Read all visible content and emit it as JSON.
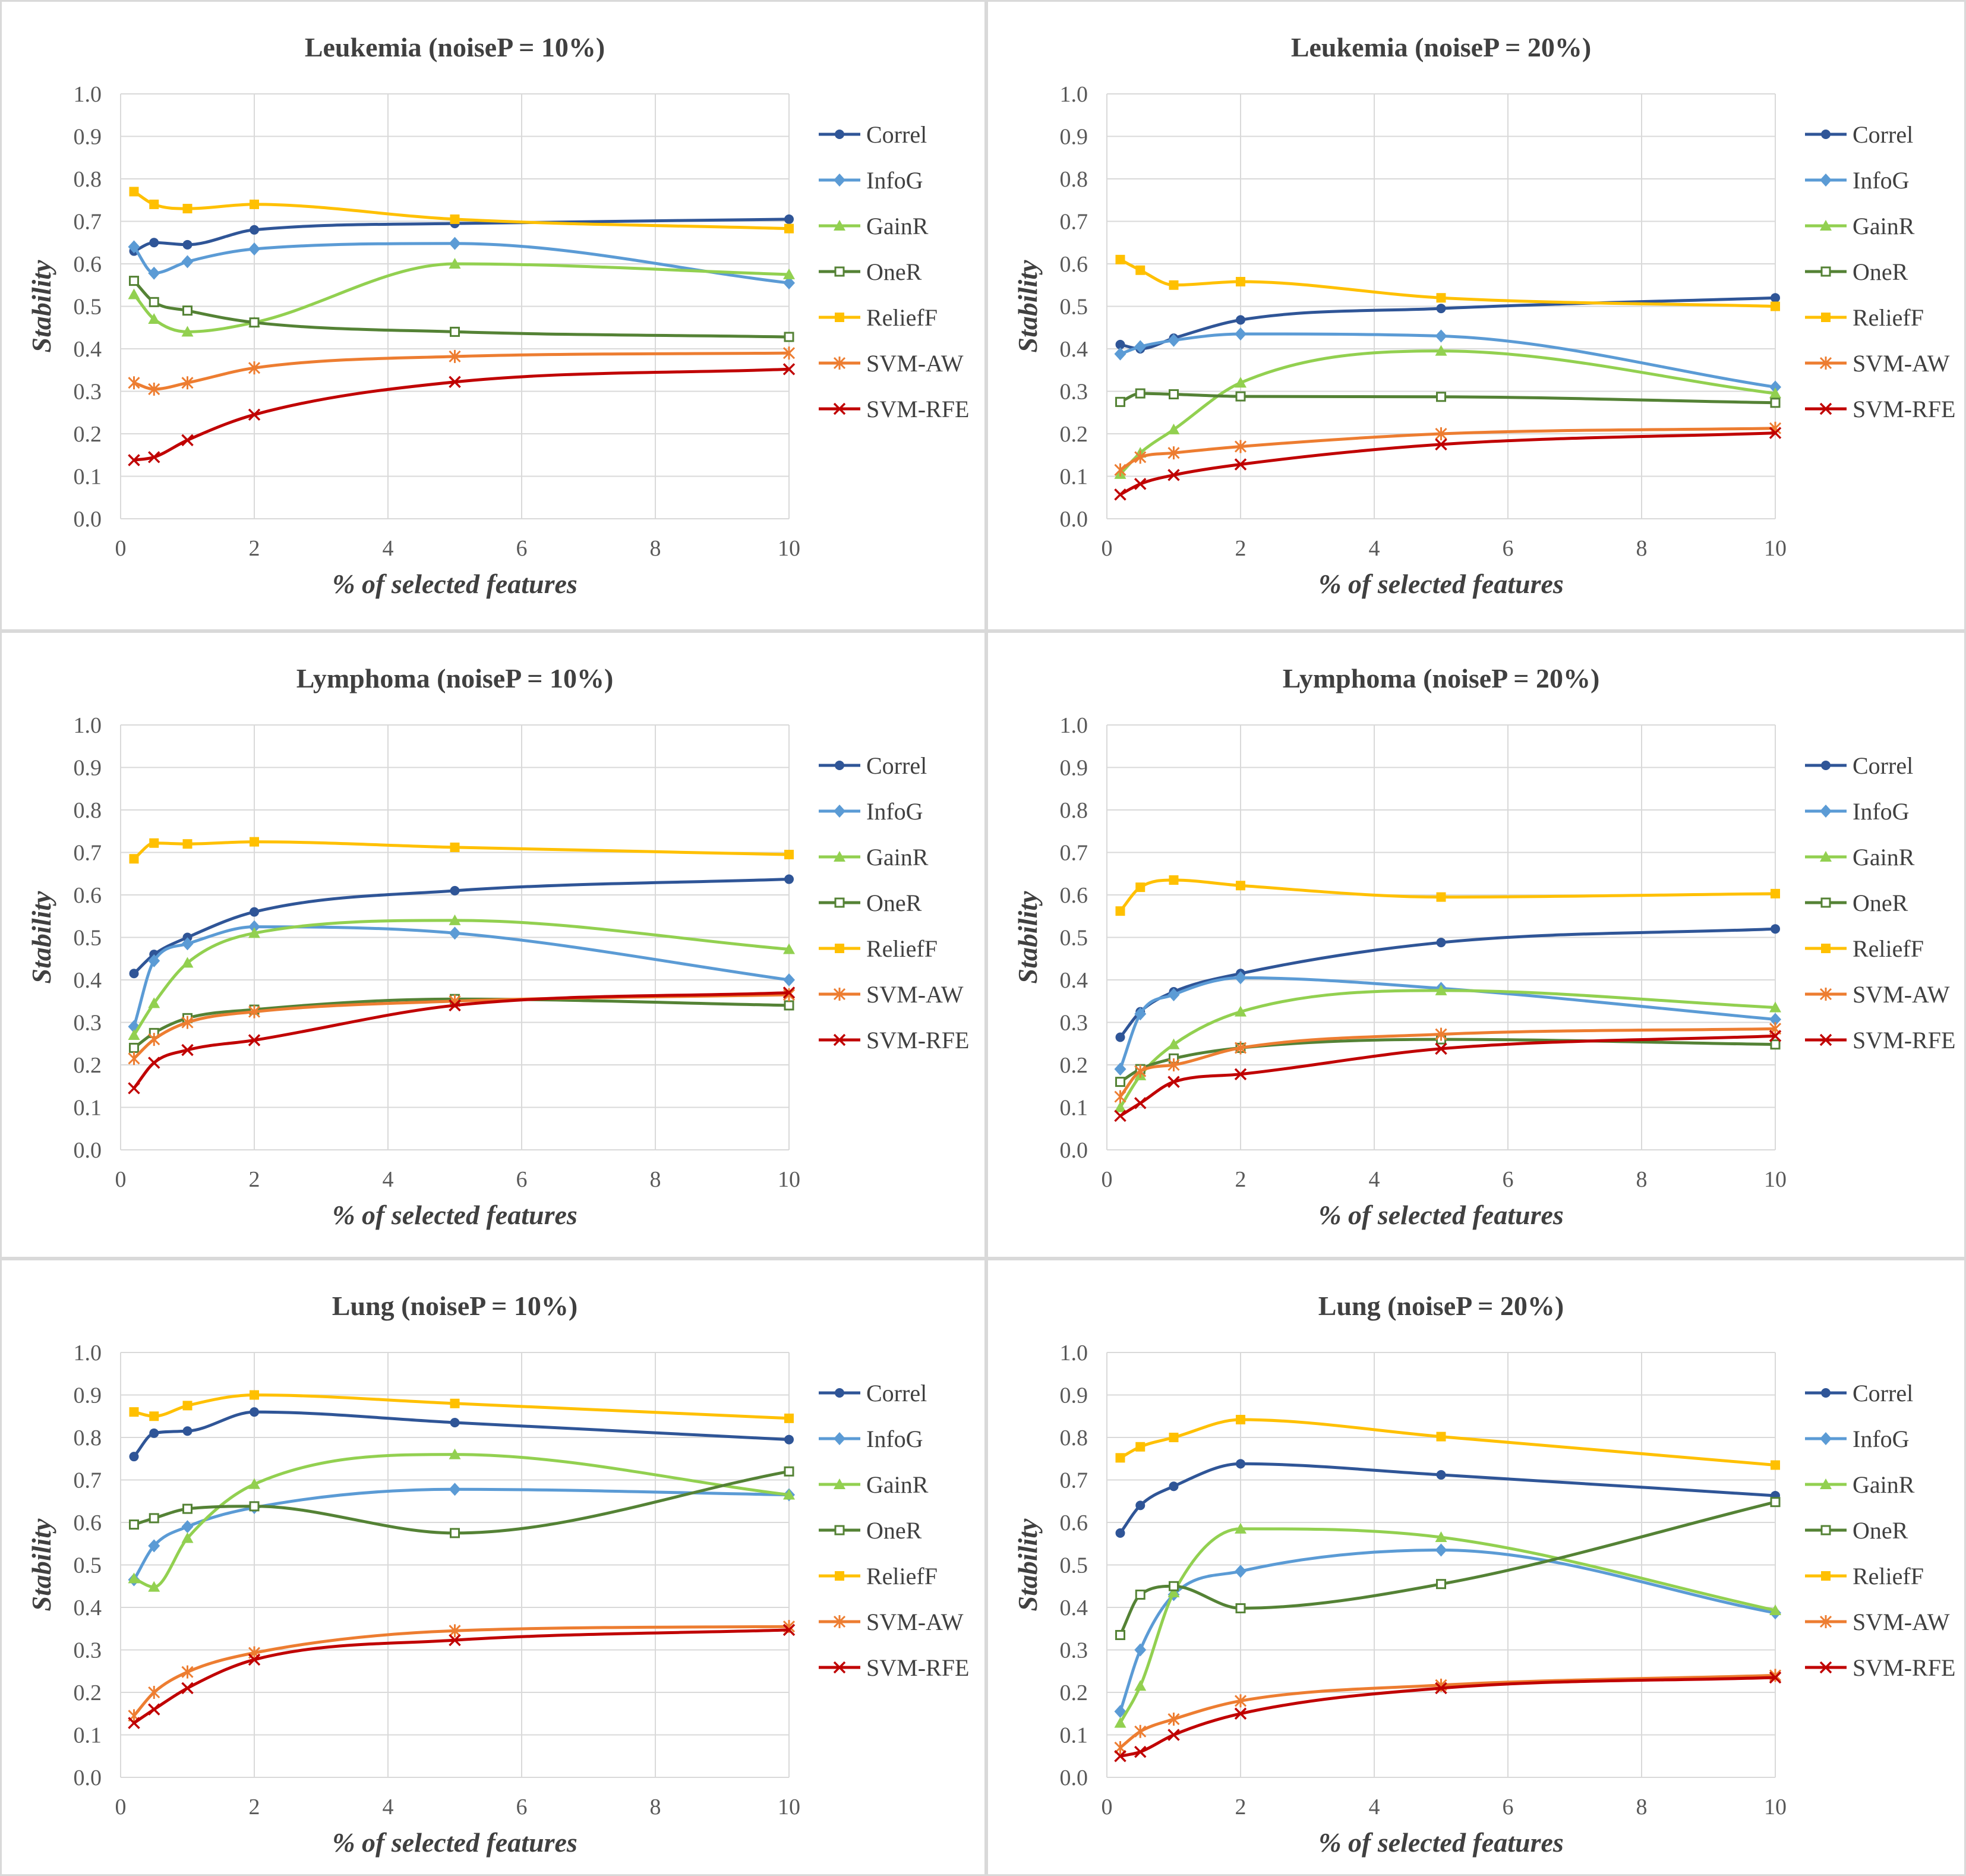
{
  "chart_data": [
    {
      "type": "line",
      "title": "Leukemia (noiseP = 10%)",
      "xlabel": "% of selected features",
      "ylabel": "Stability",
      "xlim": [
        0,
        10
      ],
      "ylim": [
        0,
        1
      ],
      "xticks": [
        "0",
        "2",
        "4",
        "6",
        "8",
        "10"
      ],
      "yticks": [
        "0.0",
        "0.1",
        "0.2",
        "0.3",
        "0.4",
        "0.5",
        "0.6",
        "0.7",
        "0.8",
        "0.9",
        "1.0"
      ],
      "x": [
        0.2,
        0.5,
        1,
        2,
        5,
        10
      ],
      "series": [
        {
          "name": "Correl",
          "color": "#2f5597",
          "marker": "circle",
          "values": [
            0.63,
            0.65,
            0.645,
            0.68,
            0.695,
            0.705
          ]
        },
        {
          "name": "InfoG",
          "color": "#5b9bd5",
          "marker": "diamond",
          "values": [
            0.64,
            0.578,
            0.605,
            0.635,
            0.648,
            0.555
          ]
        },
        {
          "name": "GainR",
          "color": "#92d050",
          "marker": "triangle",
          "values": [
            0.528,
            0.47,
            0.44,
            0.462,
            0.6,
            0.575
          ]
        },
        {
          "name": "OneR",
          "color": "#548235",
          "marker": "square-open",
          "values": [
            0.56,
            0.51,
            0.49,
            0.462,
            0.44,
            0.428
          ]
        },
        {
          "name": "ReliefF",
          "color": "#ffc000",
          "marker": "square",
          "values": [
            0.77,
            0.74,
            0.73,
            0.74,
            0.705,
            0.683
          ]
        },
        {
          "name": "SVM-AW",
          "color": "#ed7d31",
          "marker": "asterisk",
          "values": [
            0.32,
            0.305,
            0.32,
            0.355,
            0.382,
            0.39
          ]
        },
        {
          "name": "SVM-RFE",
          "color": "#c00000",
          "marker": "x",
          "values": [
            0.138,
            0.145,
            0.185,
            0.245,
            0.322,
            0.352
          ]
        }
      ]
    },
    {
      "type": "line",
      "title": "Leukemia (noiseP = 20%)",
      "xlabel": "% of selected features",
      "ylabel": "Stability",
      "xlim": [
        0,
        10
      ],
      "ylim": [
        0,
        1
      ],
      "xticks": [
        "0",
        "2",
        "4",
        "6",
        "8",
        "10"
      ],
      "yticks": [
        "0.0",
        "0.1",
        "0.2",
        "0.3",
        "0.4",
        "0.5",
        "0.6",
        "0.7",
        "0.8",
        "0.9",
        "1.0"
      ],
      "x": [
        0.2,
        0.5,
        1,
        2,
        5,
        10
      ],
      "series": [
        {
          "name": "Correl",
          "color": "#2f5597",
          "marker": "circle",
          "values": [
            0.41,
            0.4,
            0.425,
            0.468,
            0.495,
            0.52
          ]
        },
        {
          "name": "InfoG",
          "color": "#5b9bd5",
          "marker": "diamond",
          "values": [
            0.388,
            0.405,
            0.42,
            0.435,
            0.43,
            0.31
          ]
        },
        {
          "name": "GainR",
          "color": "#92d050",
          "marker": "triangle",
          "values": [
            0.105,
            0.155,
            0.21,
            0.32,
            0.395,
            0.295
          ]
        },
        {
          "name": "OneR",
          "color": "#548235",
          "marker": "square-open",
          "values": [
            0.275,
            0.295,
            0.293,
            0.288,
            0.287,
            0.273
          ]
        },
        {
          "name": "ReliefF",
          "color": "#ffc000",
          "marker": "square",
          "values": [
            0.61,
            0.585,
            0.55,
            0.558,
            0.52,
            0.5
          ]
        },
        {
          "name": "SVM-AW",
          "color": "#ed7d31",
          "marker": "asterisk",
          "values": [
            0.115,
            0.145,
            0.155,
            0.17,
            0.2,
            0.213
          ]
        },
        {
          "name": "SVM-RFE",
          "color": "#c00000",
          "marker": "x",
          "values": [
            0.057,
            0.082,
            0.103,
            0.128,
            0.175,
            0.202
          ]
        }
      ]
    },
    {
      "type": "line",
      "title": "Lymphoma (noiseP = 10%)",
      "xlabel": "% of selected features",
      "ylabel": "Stability",
      "xlim": [
        0,
        10
      ],
      "ylim": [
        0,
        1
      ],
      "xticks": [
        "0",
        "2",
        "4",
        "6",
        "8",
        "10"
      ],
      "yticks": [
        "0.0",
        "0.1",
        "0.2",
        "0.3",
        "0.4",
        "0.5",
        "0.6",
        "0.7",
        "0.8",
        "0.9",
        "1.0"
      ],
      "x": [
        0.2,
        0.5,
        1,
        2,
        5,
        10
      ],
      "series": [
        {
          "name": "Correl",
          "color": "#2f5597",
          "marker": "circle",
          "values": [
            0.415,
            0.46,
            0.5,
            0.56,
            0.61,
            0.637
          ]
        },
        {
          "name": "InfoG",
          "color": "#5b9bd5",
          "marker": "diamond",
          "values": [
            0.29,
            0.445,
            0.485,
            0.525,
            0.51,
            0.4
          ]
        },
        {
          "name": "GainR",
          "color": "#92d050",
          "marker": "triangle",
          "values": [
            0.27,
            0.345,
            0.44,
            0.51,
            0.54,
            0.472
          ]
        },
        {
          "name": "OneR",
          "color": "#548235",
          "marker": "square-open",
          "values": [
            0.24,
            0.275,
            0.31,
            0.33,
            0.355,
            0.34
          ]
        },
        {
          "name": "ReliefF",
          "color": "#ffc000",
          "marker": "square",
          "values": [
            0.685,
            0.722,
            0.72,
            0.725,
            0.712,
            0.695
          ]
        },
        {
          "name": "SVM-AW",
          "color": "#ed7d31",
          "marker": "asterisk",
          "values": [
            0.215,
            0.26,
            0.3,
            0.325,
            0.35,
            0.365
          ]
        },
        {
          "name": "SVM-RFE",
          "color": "#c00000",
          "marker": "x",
          "values": [
            0.145,
            0.205,
            0.235,
            0.258,
            0.34,
            0.37
          ]
        }
      ]
    },
    {
      "type": "line",
      "title": "Lymphoma (noiseP = 20%)",
      "xlabel": "% of selected features",
      "ylabel": "Stability",
      "xlim": [
        0,
        10
      ],
      "ylim": [
        0,
        1
      ],
      "xticks": [
        "0",
        "2",
        "4",
        "6",
        "8",
        "10"
      ],
      "yticks": [
        "0.0",
        "0.1",
        "0.2",
        "0.3",
        "0.4",
        "0.5",
        "0.6",
        "0.7",
        "0.8",
        "0.9",
        "1.0"
      ],
      "x": [
        0.2,
        0.5,
        1,
        2,
        5,
        10
      ],
      "series": [
        {
          "name": "Correl",
          "color": "#2f5597",
          "marker": "circle",
          "values": [
            0.265,
            0.325,
            0.372,
            0.415,
            0.488,
            0.52
          ]
        },
        {
          "name": "InfoG",
          "color": "#5b9bd5",
          "marker": "diamond",
          "values": [
            0.19,
            0.32,
            0.365,
            0.405,
            0.38,
            0.307
          ]
        },
        {
          "name": "GainR",
          "color": "#92d050",
          "marker": "triangle",
          "values": [
            0.1,
            0.175,
            0.248,
            0.325,
            0.375,
            0.335
          ]
        },
        {
          "name": "OneR",
          "color": "#548235",
          "marker": "square-open",
          "values": [
            0.16,
            0.19,
            0.215,
            0.24,
            0.26,
            0.248
          ]
        },
        {
          "name": "ReliefF",
          "color": "#ffc000",
          "marker": "square",
          "values": [
            0.562,
            0.618,
            0.635,
            0.622,
            0.595,
            0.603
          ]
        },
        {
          "name": "SVM-AW",
          "color": "#ed7d31",
          "marker": "asterisk",
          "values": [
            0.125,
            0.185,
            0.2,
            0.24,
            0.272,
            0.285
          ]
        },
        {
          "name": "SVM-RFE",
          "color": "#c00000",
          "marker": "x",
          "values": [
            0.08,
            0.11,
            0.16,
            0.178,
            0.238,
            0.268
          ]
        }
      ]
    },
    {
      "type": "line",
      "title": "Lung (noiseP = 10%)",
      "xlabel": "% of selected features",
      "ylabel": "Stability",
      "xlim": [
        0,
        10
      ],
      "ylim": [
        0,
        1
      ],
      "xticks": [
        "0",
        "2",
        "4",
        "6",
        "8",
        "10"
      ],
      "yticks": [
        "0.0",
        "0.1",
        "0.2",
        "0.3",
        "0.4",
        "0.5",
        "0.6",
        "0.7",
        "0.8",
        "0.9",
        "1.0"
      ],
      "x": [
        0.2,
        0.5,
        1,
        2,
        5,
        10
      ],
      "series": [
        {
          "name": "Correl",
          "color": "#2f5597",
          "marker": "circle",
          "values": [
            0.755,
            0.81,
            0.815,
            0.86,
            0.835,
            0.795
          ]
        },
        {
          "name": "InfoG",
          "color": "#5b9bd5",
          "marker": "diamond",
          "values": [
            0.465,
            0.545,
            0.59,
            0.635,
            0.678,
            0.665
          ]
        },
        {
          "name": "GainR",
          "color": "#92d050",
          "marker": "triangle",
          "values": [
            0.468,
            0.448,
            0.563,
            0.69,
            0.76,
            0.665
          ]
        },
        {
          "name": "OneR",
          "color": "#548235",
          "marker": "square-open",
          "values": [
            0.595,
            0.61,
            0.632,
            0.638,
            0.575,
            0.72
          ]
        },
        {
          "name": "ReliefF",
          "color": "#ffc000",
          "marker": "square",
          "values": [
            0.86,
            0.85,
            0.875,
            0.9,
            0.88,
            0.845
          ]
        },
        {
          "name": "SVM-AW",
          "color": "#ed7d31",
          "marker": "asterisk",
          "values": [
            0.145,
            0.2,
            0.248,
            0.293,
            0.345,
            0.355
          ]
        },
        {
          "name": "SVM-RFE",
          "color": "#c00000",
          "marker": "x",
          "values": [
            0.128,
            0.16,
            0.21,
            0.277,
            0.323,
            0.347
          ]
        }
      ]
    },
    {
      "type": "line",
      "title": "Lung (noiseP = 20%)",
      "xlabel": "% of selected features",
      "ylabel": "Stability",
      "xlim": [
        0,
        10
      ],
      "ylim": [
        0,
        1
      ],
      "xticks": [
        "0",
        "2",
        "4",
        "6",
        "8",
        "10"
      ],
      "yticks": [
        "0.0",
        "0.1",
        "0.2",
        "0.3",
        "0.4",
        "0.5",
        "0.6",
        "0.7",
        "0.8",
        "0.9",
        "1.0"
      ],
      "x": [
        0.2,
        0.5,
        1,
        2,
        5,
        10
      ],
      "series": [
        {
          "name": "Correl",
          "color": "#2f5597",
          "marker": "circle",
          "values": [
            0.575,
            0.64,
            0.685,
            0.738,
            0.712,
            0.663
          ]
        },
        {
          "name": "InfoG",
          "color": "#5b9bd5",
          "marker": "diamond",
          "values": [
            0.155,
            0.3,
            0.43,
            0.485,
            0.535,
            0.387
          ]
        },
        {
          "name": "GainR",
          "color": "#92d050",
          "marker": "triangle",
          "values": [
            0.128,
            0.215,
            0.435,
            0.585,
            0.565,
            0.393
          ]
        },
        {
          "name": "OneR",
          "color": "#548235",
          "marker": "square-open",
          "values": [
            0.335,
            0.43,
            0.45,
            0.398,
            0.455,
            0.648
          ]
        },
        {
          "name": "ReliefF",
          "color": "#ffc000",
          "marker": "square",
          "values": [
            0.752,
            0.778,
            0.8,
            0.842,
            0.802,
            0.735
          ]
        },
        {
          "name": "SVM-AW",
          "color": "#ed7d31",
          "marker": "asterisk",
          "values": [
            0.07,
            0.108,
            0.137,
            0.18,
            0.217,
            0.24
          ]
        },
        {
          "name": "SVM-RFE",
          "color": "#c00000",
          "marker": "x",
          "values": [
            0.05,
            0.06,
            0.1,
            0.15,
            0.21,
            0.235
          ]
        }
      ]
    }
  ]
}
